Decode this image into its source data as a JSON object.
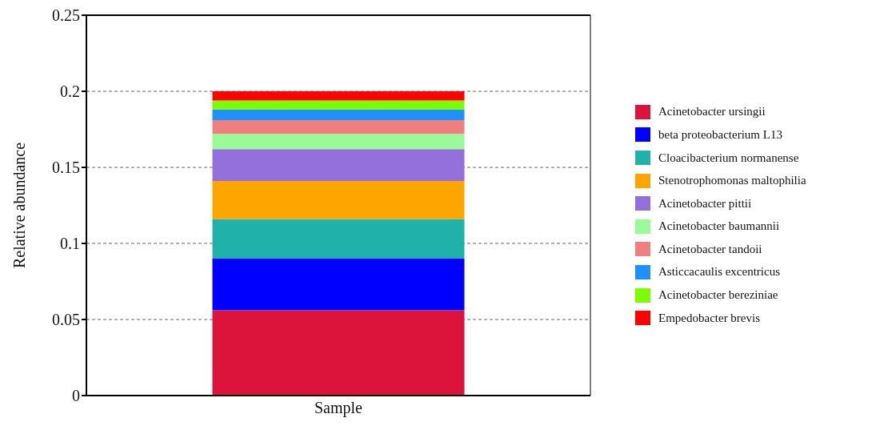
{
  "chart_data": {
    "type": "bar",
    "stacked": true,
    "categories": [
      "Sample"
    ],
    "ylabel": "Relative abundance",
    "ylim": [
      0,
      0.25
    ],
    "yticks": [
      0,
      0.05,
      0.1,
      0.15,
      0.2,
      0.25
    ],
    "grid": "y",
    "legend": "right",
    "series": [
      {
        "name": "Acinetobacter ursingii",
        "color": "#dc143c",
        "values": [
          0.056
        ]
      },
      {
        "name": "beta proteobacterium L13",
        "color": "#0000ff",
        "values": [
          0.034
        ]
      },
      {
        "name": "Cloacibacterium normanense",
        "color": "#20b2aa",
        "values": [
          0.026
        ]
      },
      {
        "name": "Stenotrophomonas maltophilia",
        "color": "#ffa500",
        "values": [
          0.025
        ]
      },
      {
        "name": "Acinetobacter pittii",
        "color": "#9370db",
        "values": [
          0.021
        ]
      },
      {
        "name": "Acinetobacter baumannii",
        "color": "#98fb98",
        "values": [
          0.01
        ]
      },
      {
        "name": "Acinetobacter tandoii",
        "color": "#f08080",
        "values": [
          0.009
        ]
      },
      {
        "name": "Asticcacaulis excentricus",
        "color": "#1e90ff",
        "values": [
          0.007
        ]
      },
      {
        "name": "Acinetobacter bereziniae",
        "color": "#7cfc00",
        "values": [
          0.006
        ]
      },
      {
        "name": "Empedobacter brevis",
        "color": "#ff0000",
        "values": [
          0.006
        ]
      }
    ]
  }
}
